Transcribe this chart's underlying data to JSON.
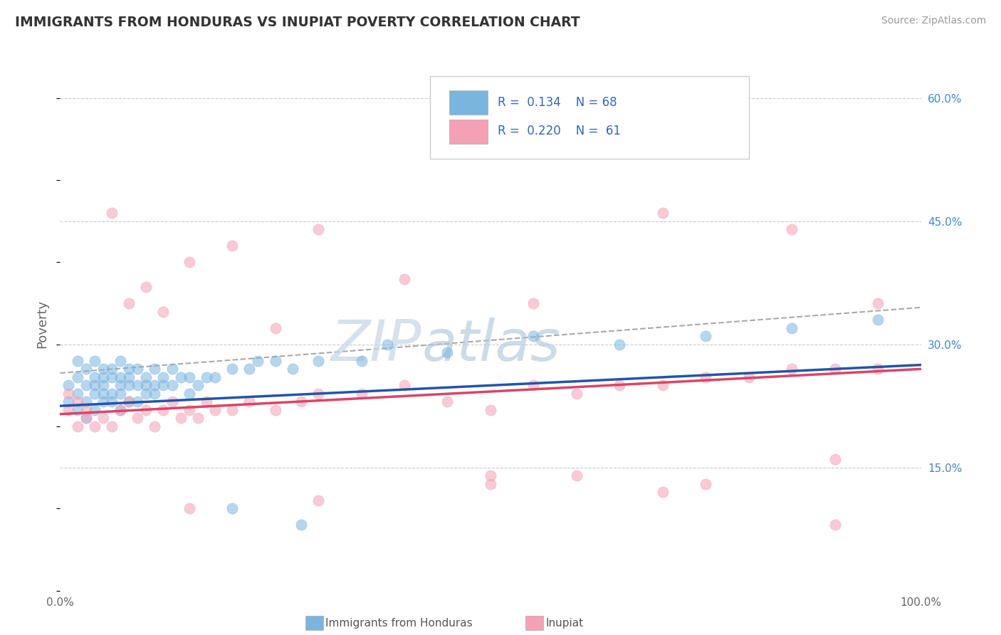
{
  "title": "IMMIGRANTS FROM HONDURAS VS INUPIAT POVERTY CORRELATION CHART",
  "source_text": "Source: ZipAtlas.com",
  "ylabel": "Poverty",
  "xlim": [
    0,
    100
  ],
  "ylim": [
    0,
    65
  ],
  "y_ticks": [
    15,
    30,
    45,
    60
  ],
  "y_tick_labels": [
    "15.0%",
    "30.0%",
    "45.0%",
    "60.0%"
  ],
  "series1_color": "#7ab5e0",
  "series2_color": "#f4a0b5",
  "line1_color": "#2255aa",
  "line2_color": "#dd4466",
  "background_color": "#ffffff",
  "grid_color": "#cccccc",
  "blue_line_y_start": 22.5,
  "blue_line_y_end": 27.5,
  "pink_line_y_start": 21.5,
  "pink_line_y_end": 27.0,
  "diag_line_y_start": 26.5,
  "diag_line_y_end": 34.5,
  "blue_scatter_x": [
    1,
    1,
    2,
    2,
    2,
    2,
    3,
    3,
    3,
    3,
    4,
    4,
    4,
    4,
    4,
    5,
    5,
    5,
    5,
    5,
    6,
    6,
    6,
    6,
    7,
    7,
    7,
    7,
    7,
    8,
    8,
    8,
    8,
    9,
    9,
    9,
    10,
    10,
    10,
    11,
    11,
    11,
    12,
    12,
    13,
    13,
    14,
    15,
    15,
    16,
    17,
    18,
    20,
    22,
    23,
    25,
    27,
    30,
    35,
    38,
    45,
    55,
    65,
    75,
    85,
    95,
    20,
    28
  ],
  "blue_scatter_y": [
    23,
    25,
    22,
    24,
    26,
    28,
    21,
    23,
    25,
    27,
    22,
    24,
    25,
    26,
    28,
    23,
    24,
    25,
    26,
    27,
    23,
    24,
    26,
    27,
    22,
    24,
    25,
    26,
    28,
    23,
    25,
    26,
    27,
    23,
    25,
    27,
    24,
    25,
    26,
    24,
    25,
    27,
    25,
    26,
    25,
    27,
    26,
    24,
    26,
    25,
    26,
    26,
    27,
    27,
    28,
    28,
    27,
    28,
    28,
    30,
    29,
    31,
    30,
    31,
    32,
    33,
    10,
    8
  ],
  "pink_scatter_x": [
    1,
    1,
    2,
    2,
    3,
    3,
    4,
    5,
    6,
    7,
    8,
    9,
    10,
    11,
    12,
    13,
    14,
    15,
    16,
    17,
    18,
    20,
    22,
    25,
    28,
    30,
    35,
    40,
    45,
    50,
    55,
    60,
    65,
    70,
    75,
    80,
    85,
    90,
    95,
    6,
    8,
    10,
    12,
    15,
    20,
    25,
    30,
    40,
    55,
    70,
    85,
    95,
    50,
    60,
    75,
    90,
    15,
    30,
    50,
    70,
    90
  ],
  "pink_scatter_y": [
    22,
    24,
    20,
    23,
    21,
    22,
    20,
    21,
    20,
    22,
    23,
    21,
    22,
    20,
    22,
    23,
    21,
    22,
    21,
    23,
    22,
    22,
    23,
    22,
    23,
    24,
    24,
    25,
    23,
    22,
    25,
    24,
    25,
    25,
    26,
    26,
    27,
    27,
    27,
    46,
    35,
    37,
    34,
    40,
    42,
    32,
    44,
    38,
    35,
    46,
    44,
    35,
    13,
    14,
    13,
    16,
    10,
    11,
    14,
    12,
    8
  ],
  "watermark_zip": "ZIP",
  "watermark_atlas": "atlas"
}
